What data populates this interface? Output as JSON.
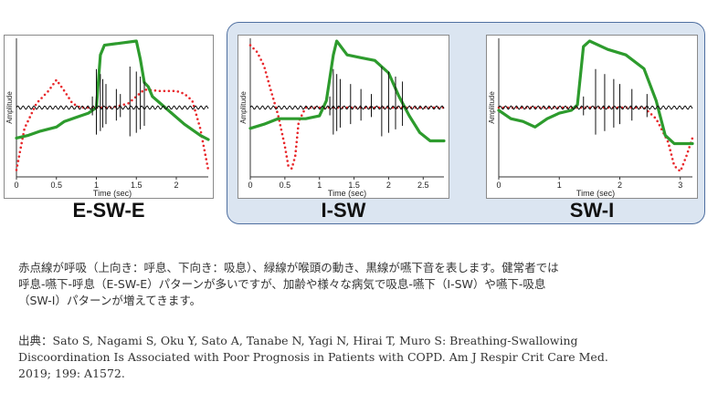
{
  "chart_data": [
    {
      "type": "line",
      "title": "E-SW-E",
      "xlabel": "Time (sec)",
      "ylabel": "Amplitude",
      "xlim": [
        0,
        2.4
      ],
      "xticks": [
        "0",
        "0.5",
        "1",
        "1.5",
        "2"
      ],
      "xtick_values": [
        0,
        0.5,
        1,
        1.5,
        2
      ],
      "series": [
        {
          "color": "#e8272b",
          "style": "dotted",
          "x": [
            0,
            0.1,
            0.25,
            0.4,
            0.5,
            0.6,
            0.7,
            0.8,
            0.9,
            1.0,
            1.2,
            1.4,
            1.6,
            1.8,
            2.0,
            2.1,
            2.2,
            2.3,
            2.4
          ],
          "y": [
            0.05,
            0.35,
            0.53,
            0.62,
            0.7,
            0.62,
            0.53,
            0.5,
            0.5,
            0.5,
            0.5,
            0.53,
            0.63,
            0.62,
            0.62,
            0.6,
            0.55,
            0.35,
            0.05
          ]
        },
        {
          "color": "#2d9b2d",
          "style": "solid",
          "x": [
            0,
            0.15,
            0.3,
            0.5,
            0.6,
            0.8,
            0.9,
            1.0,
            1.05,
            1.1,
            1.5,
            1.55,
            1.6,
            1.65,
            1.7,
            1.9,
            2.1,
            2.3,
            2.4
          ],
          "y": [
            0.28,
            0.3,
            0.33,
            0.36,
            0.4,
            0.44,
            0.46,
            0.5,
            0.88,
            0.95,
            0.98,
            0.85,
            0.68,
            0.65,
            0.58,
            0.48,
            0.38,
            0.3,
            0.27
          ]
        },
        {
          "color": "#111111",
          "style": "solid",
          "kind": "sound",
          "x": [
            0,
            0.5,
            0.9,
            1.05,
            1.25,
            1.45,
            1.55,
            1.6,
            1.8,
            2.4
          ],
          "y": [
            0.5,
            0.5,
            0.5,
            0.5,
            0.5,
            0.5,
            0.5,
            0.5,
            0.5,
            0.5
          ],
          "bursts": [
            0.95,
            1.0,
            1.05,
            1.08,
            1.12,
            1.25,
            1.3,
            1.42,
            1.5,
            1.55,
            1.6
          ]
        }
      ]
    },
    {
      "type": "line",
      "title": "I-SW",
      "xlabel": "Time (sec)",
      "ylabel": "Amplitude",
      "xlim": [
        0,
        2.8
      ],
      "xticks": [
        "0",
        "0.5",
        "1",
        "1.5",
        "2",
        "2.5"
      ],
      "xtick_values": [
        0,
        0.5,
        1,
        1.5,
        2,
        2.5
      ],
      "series": [
        {
          "color": "#e8272b",
          "style": "dotted",
          "x": [
            0,
            0.1,
            0.2,
            0.3,
            0.4,
            0.5,
            0.55,
            0.6,
            0.65,
            0.7,
            0.8,
            0.9,
            1.0,
            1.3,
            1.6,
            2.0,
            2.3,
            2.5,
            2.7,
            2.8
          ],
          "y": [
            0.95,
            0.9,
            0.8,
            0.62,
            0.45,
            0.22,
            0.08,
            0.06,
            0.15,
            0.4,
            0.5,
            0.5,
            0.5,
            0.5,
            0.5,
            0.5,
            0.5,
            0.5,
            0.5,
            0.5
          ]
        },
        {
          "color": "#2d9b2d",
          "style": "solid",
          "x": [
            0,
            0.2,
            0.4,
            0.6,
            0.8,
            1.0,
            1.1,
            1.2,
            1.25,
            1.4,
            1.6,
            1.8,
            2.0,
            2.15,
            2.3,
            2.45,
            2.6,
            2.8
          ],
          "y": [
            0.35,
            0.38,
            0.42,
            0.42,
            0.42,
            0.44,
            0.55,
            0.88,
            0.98,
            0.88,
            0.86,
            0.84,
            0.75,
            0.58,
            0.44,
            0.32,
            0.26,
            0.26
          ]
        },
        {
          "color": "#111111",
          "style": "solid",
          "kind": "sound",
          "x": [
            0,
            2.8
          ],
          "y": [
            0.5,
            0.5
          ],
          "bursts": [
            1.15,
            1.2,
            1.25,
            1.3,
            1.45,
            1.6,
            1.75,
            1.9,
            2.0,
            2.1,
            2.2
          ]
        }
      ]
    },
    {
      "type": "line",
      "title": "SW-I",
      "xlabel": "Time (sec)",
      "ylabel": "Amplitude",
      "xlim": [
        0,
        3.2
      ],
      "xticks": [
        "0",
        "1",
        "2",
        "3"
      ],
      "xtick_values": [
        0,
        1,
        2,
        3
      ],
      "series": [
        {
          "color": "#e8272b",
          "style": "dotted",
          "x": [
            0,
            0.5,
            1.0,
            1.5,
            2.0,
            2.4,
            2.6,
            2.8,
            2.9,
            3.0,
            3.1,
            3.2
          ],
          "y": [
            0.5,
            0.5,
            0.5,
            0.5,
            0.5,
            0.5,
            0.42,
            0.25,
            0.08,
            0.04,
            0.15,
            0.28
          ]
        },
        {
          "color": "#2d9b2d",
          "style": "solid",
          "x": [
            0,
            0.2,
            0.4,
            0.6,
            0.8,
            1.0,
            1.2,
            1.3,
            1.4,
            1.5,
            1.8,
            2.1,
            2.4,
            2.6,
            2.75,
            2.9,
            3.2
          ],
          "y": [
            0.48,
            0.42,
            0.4,
            0.36,
            0.42,
            0.46,
            0.48,
            0.52,
            0.94,
            0.98,
            0.92,
            0.88,
            0.78,
            0.55,
            0.3,
            0.24,
            0.24
          ]
        },
        {
          "color": "#111111",
          "style": "solid",
          "kind": "sound",
          "x": [
            0,
            3.2
          ],
          "y": [
            0.5,
            0.5
          ],
          "bursts": [
            1.4,
            1.6,
            1.75,
            1.9,
            2.0,
            2.2,
            2.45
          ]
        }
      ]
    }
  ],
  "caption": {
    "line1": "赤点線が呼吸（上向き：呼息、下向き：吸息）、緑線が喉頭の動き、黒線が嚥下音を表します。健常者では",
    "line2": "呼息-嚥下-呼息（E-SW-E）パターンが多いですが、加齢や様々な病気で吸息-嚥下（I-SW）や嚥下-吸息",
    "line3": "（SW-I）パターンが増えてきます。"
  },
  "source": {
    "line1": "出典：Sato S, Nagami S, Oku Y, Sato A, Tanabe N, Yagi N, Hirai T, Muro S: Breathing-Swallowing",
    "line2": "Discoordination Is Associated with Poor Prognosis in Patients with COPD. Am J Respir Crit Care Med.",
    "line3": "2019; 199: A1572."
  }
}
